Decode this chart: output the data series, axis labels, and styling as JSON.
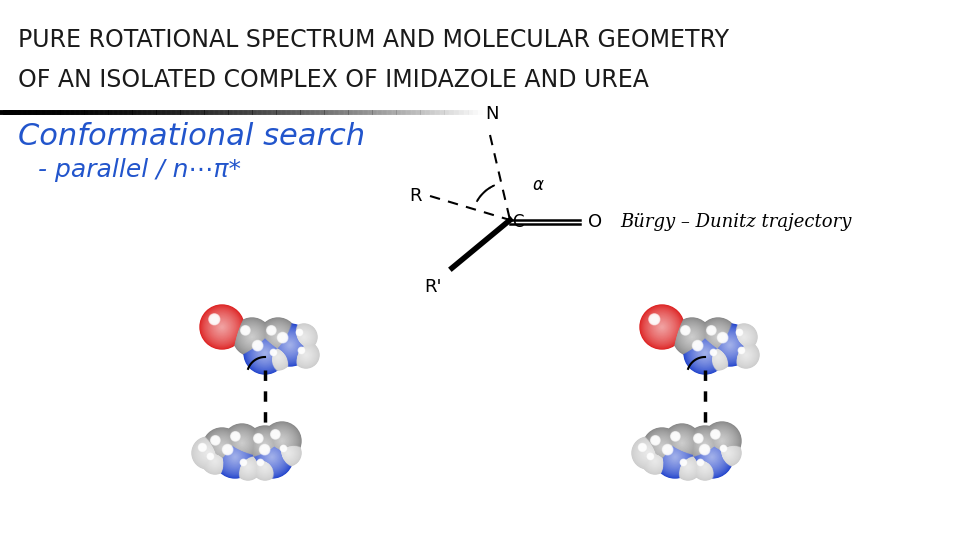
{
  "title_line1": "PURE ROTATIONAL SPECTRUM AND MOLECULAR GEOMETRY",
  "title_line2": "OF AN ISOLATED COMPLEX OF IMIDAZOLE AND UREA",
  "title_color": "#1a1a1a",
  "title_fontsize": 17,
  "section_title": "Conformational search",
  "section_title_color": "#2255cc",
  "section_title_fontsize": 22,
  "bullet_text": "- parallel / n⋯π*",
  "bullet_color": "#2255cc",
  "bullet_fontsize": 18,
  "burgy_label": "Bürgy – Dunitz trajectory",
  "burgy_fontsize": 13,
  "bg_color": "#ffffff"
}
